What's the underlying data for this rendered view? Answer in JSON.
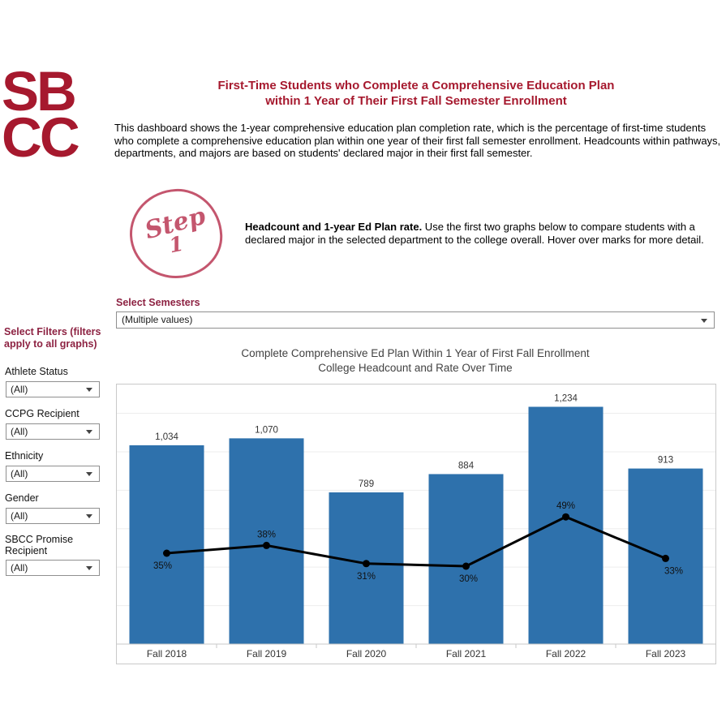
{
  "logo": {
    "line1": "SB",
    "line2": "CC"
  },
  "header": {
    "title_line1": "First-Time Students who Complete a Comprehensive Education Plan",
    "title_line2": "within 1 Year of Their First Fall Semester Enrollment",
    "description": "This dashboard shows the 1-year comprehensive education plan completion rate, which is the percentage of first-time students who complete a comprehensive education plan within one year of their first fall semester enrollment. Headcounts within pathways, departments, and majors are based on students' declared major in their first fall semester."
  },
  "step": {
    "badge_word": "Step",
    "badge_number": "1",
    "bold_intro": "Headcount and 1-year Ed Plan rate.",
    "text": " Use the first two graphs below to compare students with a declared major in the selected department to the college overall. Hover over marks for more detail."
  },
  "semester_filter": {
    "label": "Select Semesters",
    "value": "(Multiple values)"
  },
  "sidebar": {
    "heading": "Select Filters (filters apply to all graphs)",
    "filters": [
      {
        "label": "Athlete Status",
        "value": "(All)"
      },
      {
        "label": "CCPG Recipient",
        "value": "(All)"
      },
      {
        "label": "Ethnicity",
        "value": "(All)"
      },
      {
        "label": "Gender",
        "value": "(All)"
      },
      {
        "label": "SBCC Promise Recipient",
        "value": "(All)"
      }
    ]
  },
  "chart_data": {
    "type": "bar",
    "title_line1": "Complete Comprehensive Ed Plan Within 1 Year of First Fall Enrollment",
    "title_line2": "College Headcount and Rate Over Time",
    "categories": [
      "Fall 2018",
      "Fall 2019",
      "Fall 2020",
      "Fall 2021",
      "Fall 2022",
      "Fall 2023"
    ],
    "series": [
      {
        "name": "College Headcount",
        "type": "bar",
        "values": [
          1034,
          1070,
          789,
          884,
          1234,
          913
        ],
        "labels": [
          "1,034",
          "1,070",
          "789",
          "884",
          "1,234",
          "913"
        ],
        "color": "#2E71AC"
      },
      {
        "name": "1-Year Ed Plan Completion Rate",
        "type": "line",
        "values": [
          35,
          38,
          31,
          30,
          49,
          33
        ],
        "labels": [
          "35%",
          "38%",
          "31%",
          "30%",
          "49%",
          "33%"
        ],
        "label_positions": [
          "below",
          "above",
          "below",
          "below",
          "above",
          "below"
        ],
        "label_dx": [
          -5,
          0,
          0,
          3,
          0,
          10
        ],
        "color": "#000000"
      }
    ],
    "bar_axis_max": 1350,
    "pct_axis_max": 100,
    "gridline_values": [
      200,
      400,
      600,
      800,
      1000,
      1200
    ],
    "xlabel": "",
    "ylabel": "",
    "grid": "horizontal-light",
    "legend": "none"
  },
  "colors": {
    "brand_red": "#A6192E",
    "heading_maroon": "#8D2242",
    "badge_rose": "#C4566E",
    "bar_blue": "#2E71AC",
    "line_black": "#000000"
  }
}
